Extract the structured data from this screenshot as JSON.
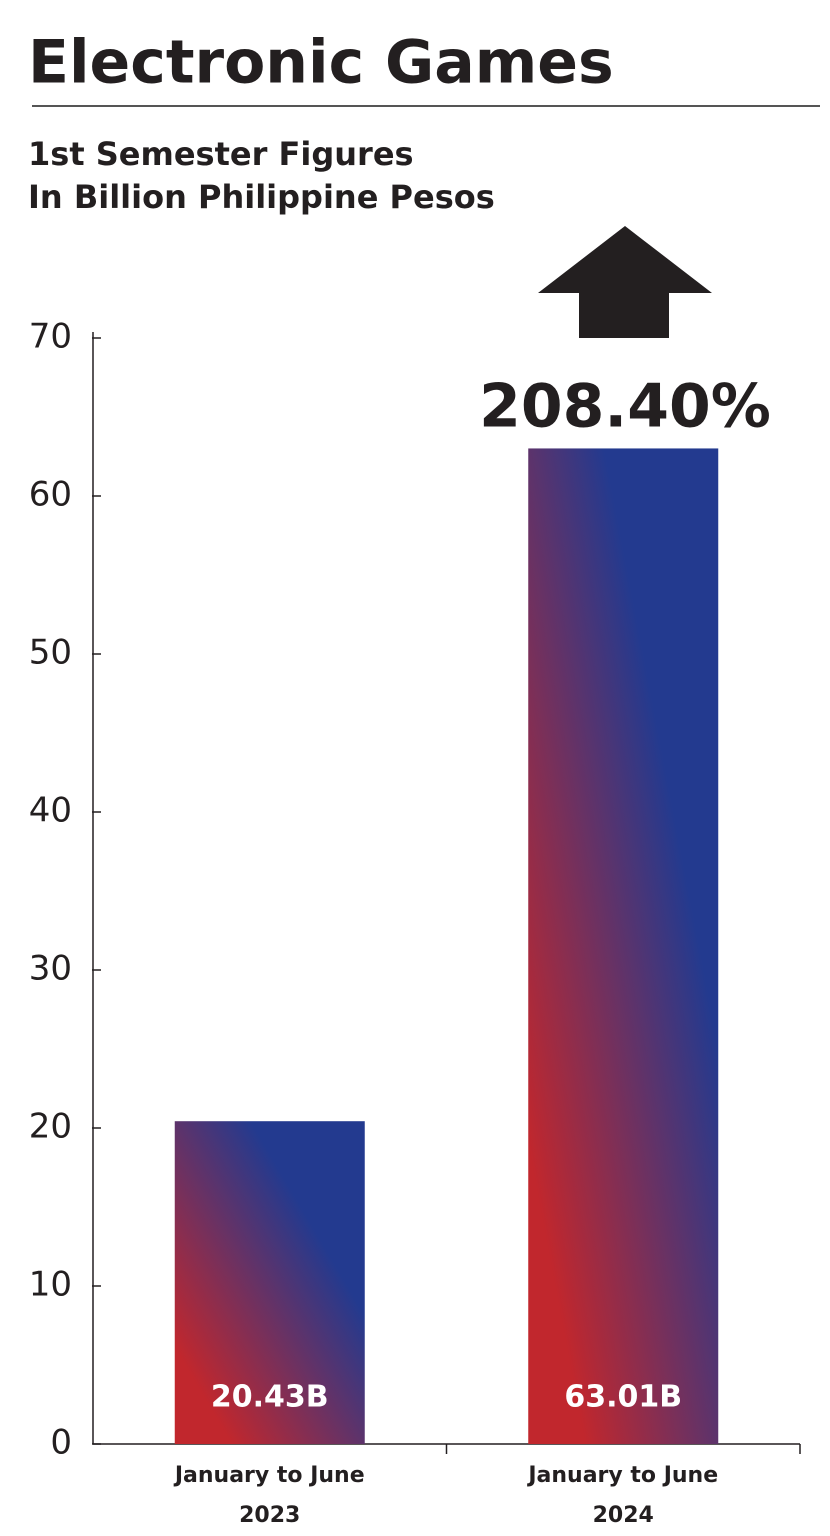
{
  "chart_data": {
    "type": "bar",
    "title": "Electronic Games",
    "subtitle": [
      "1st Semester Figures",
      "In Billion Philippine Pesos"
    ],
    "categories": [
      [
        "January to June",
        "2023"
      ],
      [
        "January to June",
        "2024"
      ]
    ],
    "values": [
      20.43,
      63.01
    ],
    "value_labels": [
      "20.43B",
      "63.01B"
    ],
    "annotation": "208.40%",
    "gradient_colors": [
      "#c1272d",
      "#233a8f"
    ],
    "ylim": [
      0,
      70
    ],
    "yticks": [
      0,
      10,
      20,
      30,
      40,
      50,
      60,
      70
    ]
  }
}
